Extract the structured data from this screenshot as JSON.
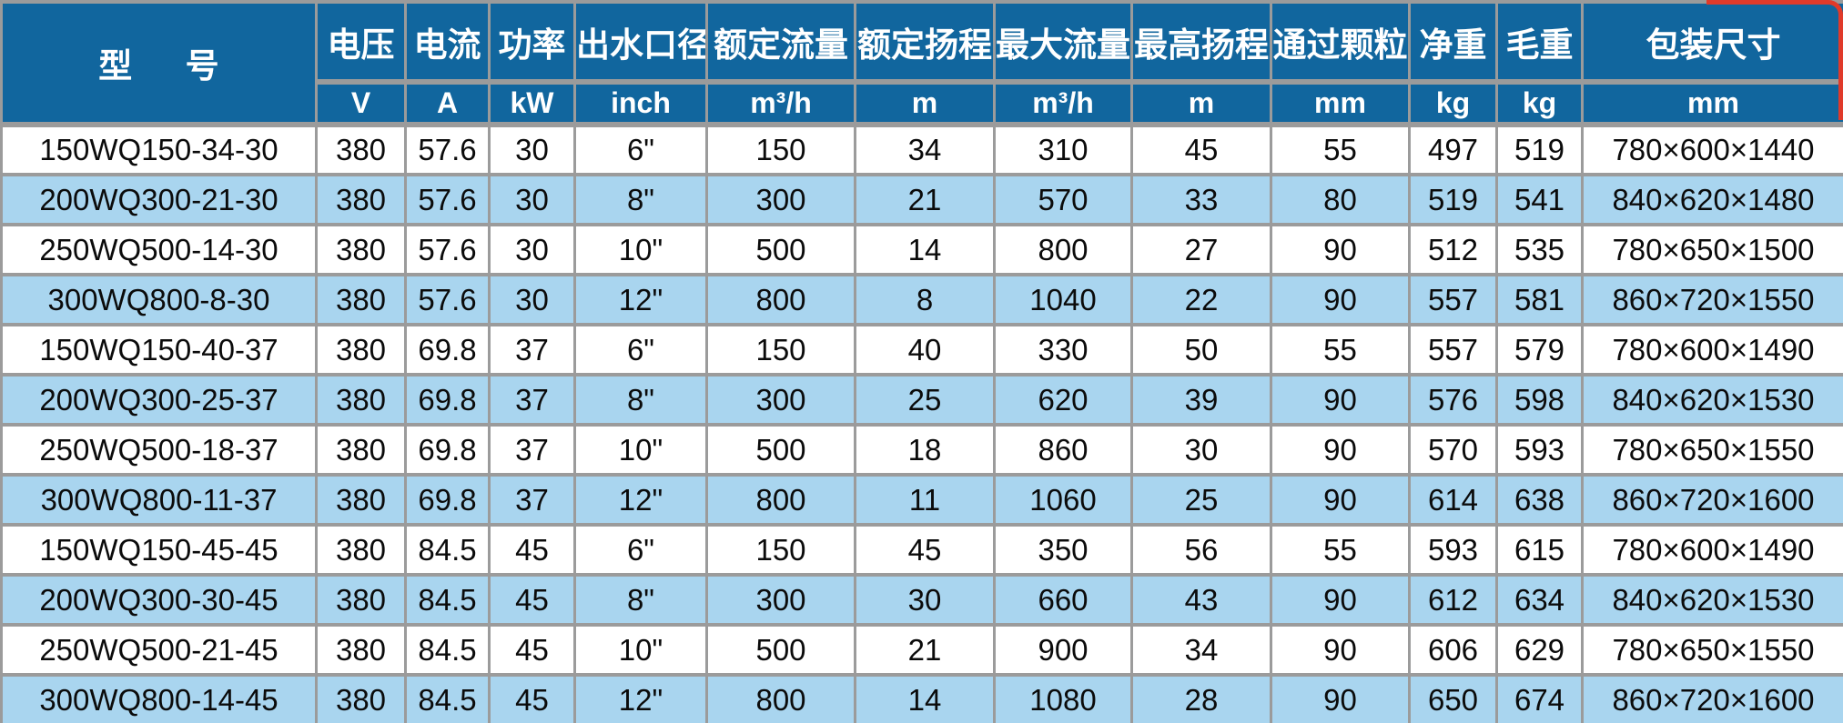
{
  "accent_colors": {
    "header_bg": "#11669E",
    "row_alt_bg": "#A9D5EF",
    "grid_line": "#9B9B9B",
    "corner_red": "#E03A2A"
  },
  "table": {
    "columns": [
      {
        "label": "型 号",
        "unit": ""
      },
      {
        "label": "电压",
        "unit": "V"
      },
      {
        "label": "电流",
        "unit": "A"
      },
      {
        "label": "功率",
        "unit": "kW"
      },
      {
        "label": "出水口径",
        "unit": "inch"
      },
      {
        "label": "额定流量",
        "unit": "m³/h"
      },
      {
        "label": "额定扬程",
        "unit": "m"
      },
      {
        "label": "最大流量",
        "unit": "m³/h"
      },
      {
        "label": "最高扬程",
        "unit": "m"
      },
      {
        "label": "通过颗粒",
        "unit": "mm"
      },
      {
        "label": "净重",
        "unit": "kg"
      },
      {
        "label": "毛重",
        "unit": "kg"
      },
      {
        "label": "包装尺寸",
        "unit": "mm"
      }
    ],
    "rows": [
      [
        "150WQ150-34-30",
        "380",
        "57.6",
        "30",
        "6\"",
        "150",
        "34",
        "310",
        "45",
        "55",
        "497",
        "519",
        "780×600×1440"
      ],
      [
        "200WQ300-21-30",
        "380",
        "57.6",
        "30",
        "8\"",
        "300",
        "21",
        "570",
        "33",
        "80",
        "519",
        "541",
        "840×620×1480"
      ],
      [
        "250WQ500-14-30",
        "380",
        "57.6",
        "30",
        "10\"",
        "500",
        "14",
        "800",
        "27",
        "90",
        "512",
        "535",
        "780×650×1500"
      ],
      [
        "300WQ800-8-30",
        "380",
        "57.6",
        "30",
        "12\"",
        "800",
        "8",
        "1040",
        "22",
        "90",
        "557",
        "581",
        "860×720×1550"
      ],
      [
        "150WQ150-40-37",
        "380",
        "69.8",
        "37",
        "6\"",
        "150",
        "40",
        "330",
        "50",
        "55",
        "557",
        "579",
        "780×600×1490"
      ],
      [
        "200WQ300-25-37",
        "380",
        "69.8",
        "37",
        "8\"",
        "300",
        "25",
        "620",
        "39",
        "90",
        "576",
        "598",
        "840×620×1530"
      ],
      [
        "250WQ500-18-37",
        "380",
        "69.8",
        "37",
        "10\"",
        "500",
        "18",
        "860",
        "30",
        "90",
        "570",
        "593",
        "780×650×1550"
      ],
      [
        "300WQ800-11-37",
        "380",
        "69.8",
        "37",
        "12\"",
        "800",
        "11",
        "1060",
        "25",
        "90",
        "614",
        "638",
        "860×720×1600"
      ],
      [
        "150WQ150-45-45",
        "380",
        "84.5",
        "45",
        "6\"",
        "150",
        "45",
        "350",
        "56",
        "55",
        "593",
        "615",
        "780×600×1490"
      ],
      [
        "200WQ300-30-45",
        "380",
        "84.5",
        "45",
        "8\"",
        "300",
        "30",
        "660",
        "43",
        "90",
        "612",
        "634",
        "840×620×1530"
      ],
      [
        "250WQ500-21-45",
        "380",
        "84.5",
        "45",
        "10\"",
        "500",
        "21",
        "900",
        "34",
        "90",
        "606",
        "629",
        "780×650×1550"
      ],
      [
        "300WQ800-14-45",
        "380",
        "84.5",
        "45",
        "12\"",
        "800",
        "14",
        "1080",
        "28",
        "90",
        "650",
        "674",
        "860×720×1600"
      ]
    ]
  }
}
